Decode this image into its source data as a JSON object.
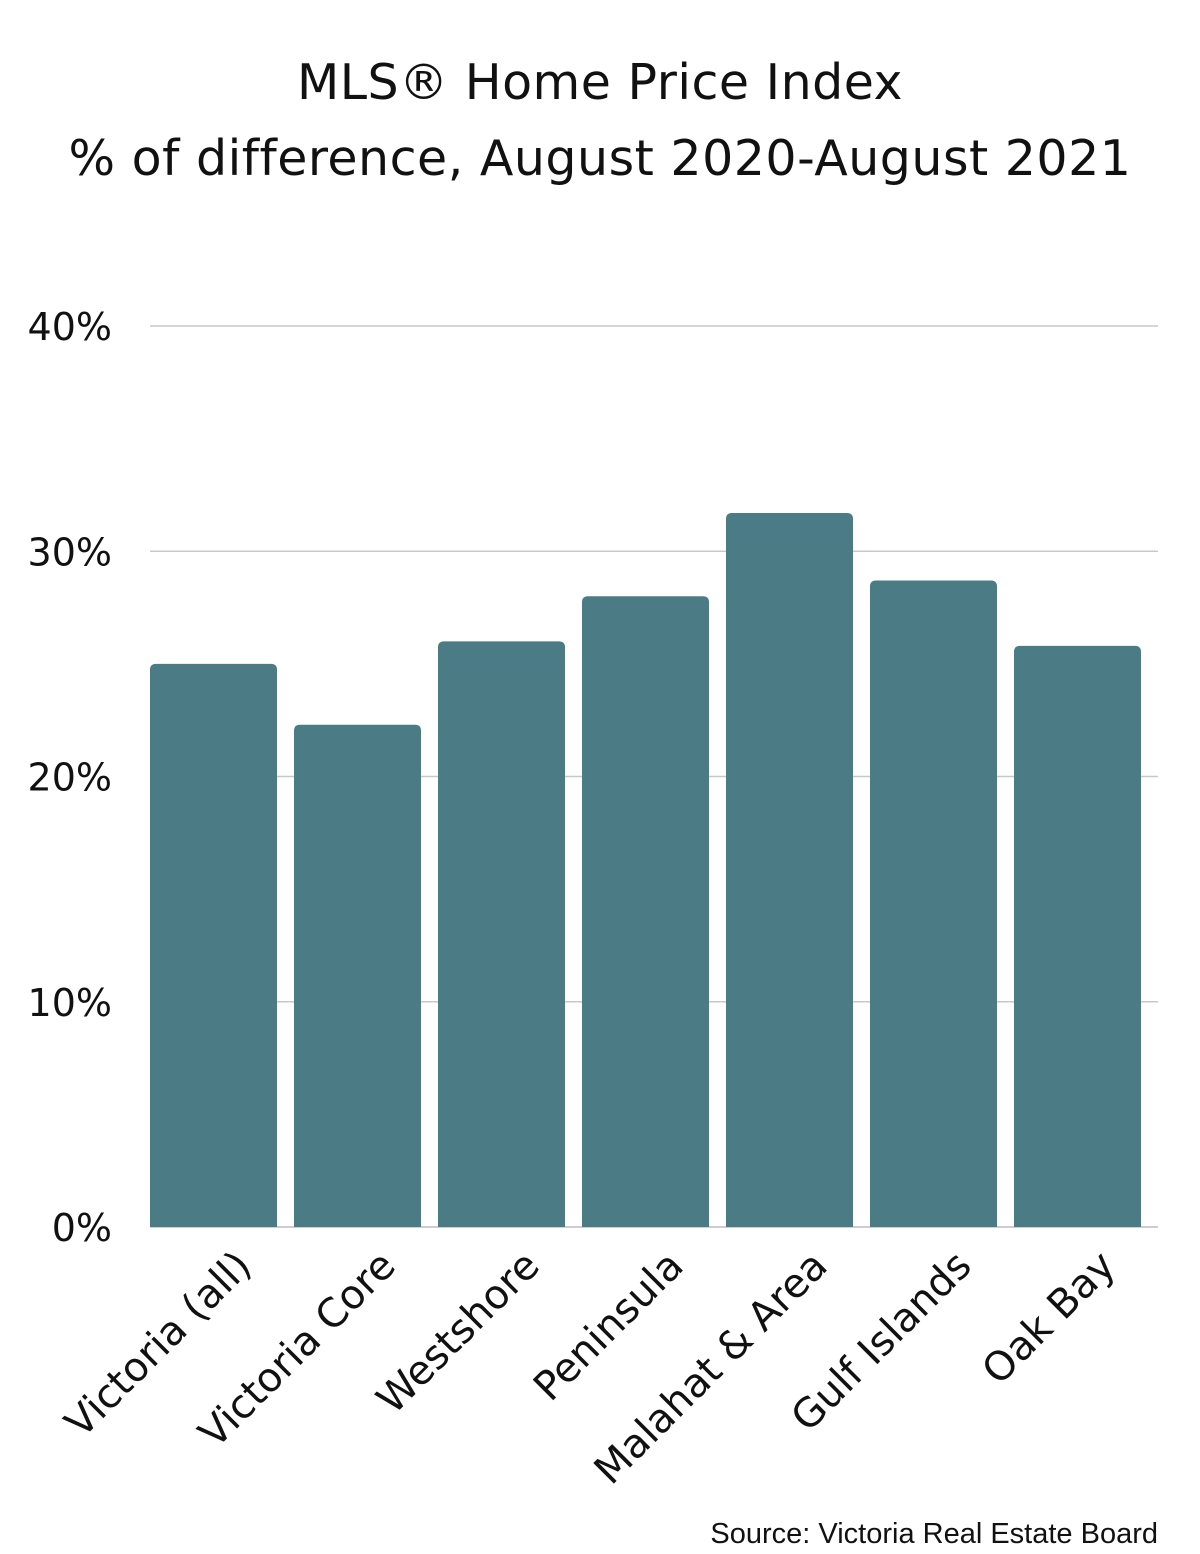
{
  "chart_data": {
    "type": "bar",
    "title": "MLS® Home Price Index",
    "subtitle": "% of difference, August 2020-August 2021",
    "categories": [
      "Victoria (all)",
      "Victoria Core",
      "Westshore",
      "Peninsula",
      "Malahat & Area",
      "Gulf Islands",
      "Oak Bay"
    ],
    "values": [
      25.0,
      22.3,
      26.0,
      28.0,
      31.7,
      28.7,
      25.8
    ],
    "ylim": [
      0,
      40
    ],
    "yticks": [
      0,
      10,
      20,
      30,
      40
    ],
    "ytick_labels": [
      "0%",
      "10%",
      "20%",
      "30%",
      "40%"
    ],
    "xlabel": "",
    "ylabel": "",
    "grid": true,
    "legend": "none",
    "colors": {
      "bar": "#4b7b84",
      "grid": "#c8c8c8",
      "text": "#111111"
    }
  },
  "source": "Source: Victoria Real Estate Board"
}
